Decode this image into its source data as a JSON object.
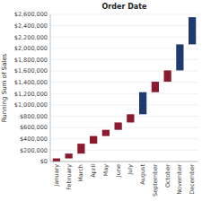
{
  "chart_data": {
    "type": "waterfall",
    "title": "Order Date",
    "ylabel": "Running Sum of Sales",
    "categories": [
      "January",
      "February",
      "March",
      "April",
      "May",
      "June",
      "July",
      "August",
      "September",
      "October",
      "November",
      "December"
    ],
    "values": [
      55000,
      85000,
      175000,
      135000,
      110000,
      130000,
      145000,
      390000,
      185000,
      200000,
      460000,
      480000
    ],
    "colors": [
      "#8b1a2e",
      "#8b1a2e",
      "#8b1a2e",
      "#8b1a2e",
      "#8b1a2e",
      "#8b1a2e",
      "#8b1a2e",
      "#1f3a6e",
      "#8b1a2e",
      "#8b1a2e",
      "#1f3a6e",
      "#1f3a6e"
    ],
    "ylim": [
      0,
      2600000
    ],
    "yticks": [
      {
        "value": 0,
        "label": "$0"
      },
      {
        "value": 200000,
        "label": "$200,000"
      },
      {
        "value": 400000,
        "label": "$400,000"
      },
      {
        "value": 600000,
        "label": "$600,000"
      },
      {
        "value": 800000,
        "label": "$800,000"
      },
      {
        "value": 1000000,
        "label": "$1,000,000"
      },
      {
        "value": 1200000,
        "label": "$1,200,000"
      },
      {
        "value": 1400000,
        "label": "$1,400,000"
      },
      {
        "value": 1600000,
        "label": "$1,600,000"
      },
      {
        "value": 1800000,
        "label": "$1,800,000"
      },
      {
        "value": 2000000,
        "label": "$2,000,000"
      },
      {
        "value": 2200000,
        "label": "$2,200,000"
      },
      {
        "value": 2400000,
        "label": "$2,400,000"
      },
      {
        "value": 2600000,
        "label": "$2,600,000"
      }
    ],
    "grid": true
  }
}
